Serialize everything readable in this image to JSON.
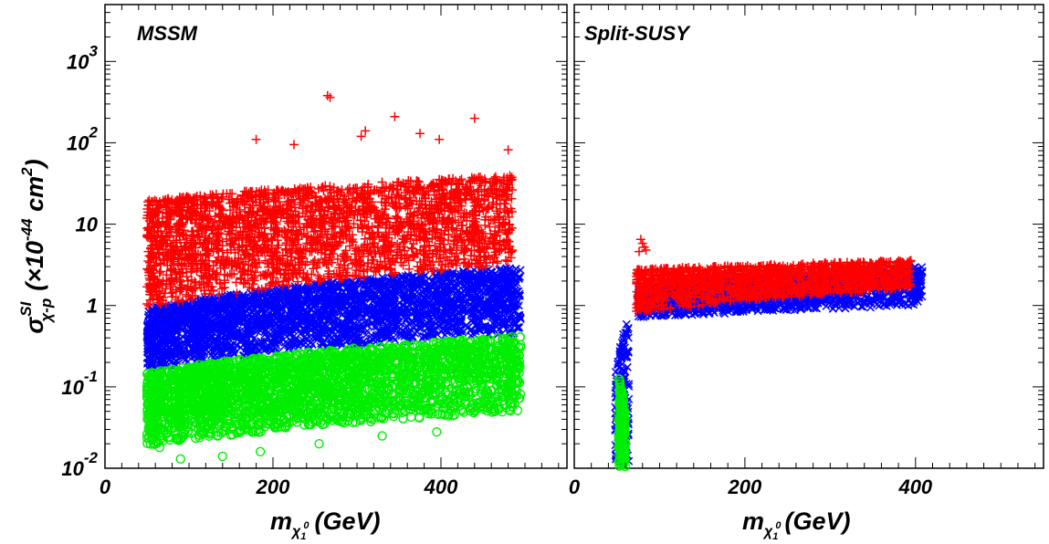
{
  "chart_data": [
    {
      "type": "scatter",
      "title": "MSSM",
      "xlabel": "m_χ1^0 (GeV)",
      "xlabel_parts": {
        "base": "m",
        "sub": "χ",
        "subsub": "1",
        "subsup": "0",
        "unit": "(GeV)"
      },
      "ylabel": "σ^SI_χ-p (×10^-44 cm^2)",
      "ylabel_parts": {
        "sigma": "σ",
        "sup": "SI",
        "sub": "χ-p",
        "pre": "(×10",
        "exp": "-44",
        "unit": " cm",
        "unit_exp": "2",
        "close": ")"
      },
      "xlim": [
        0,
        550
      ],
      "ylim": [
        0.01,
        5000
      ],
      "yscale": "log",
      "x_ticks": [
        {
          "v": 0,
          "label": "0"
        },
        {
          "v": 200,
          "label": "200"
        },
        {
          "v": 400,
          "label": "400"
        }
      ],
      "y_ticks": [
        {
          "v": 0.01,
          "base": "10",
          "exp": "-2"
        },
        {
          "v": 0.1,
          "base": "10",
          "exp": "-1"
        },
        {
          "v": 1,
          "base": "1",
          "exp": ""
        },
        {
          "v": 10,
          "base": "10",
          "exp": ""
        },
        {
          "v": 100,
          "base": "10",
          "exp": "2"
        },
        {
          "v": 1000,
          "base": "10",
          "exp": "3"
        }
      ],
      "grid": false,
      "series": [
        {
          "marker": "plus",
          "color": "#ff0000",
          "x_range": [
            50,
            485
          ],
          "y_low": [
            0.9,
            3.0
          ],
          "y_high": [
            20,
            40
          ],
          "n": 2600,
          "outliers": [
            [
              265,
              380
            ],
            [
              268,
              360
            ],
            [
              345,
              210
            ],
            [
              440,
              200
            ],
            [
              375,
              130
            ],
            [
              310,
              140
            ],
            [
              398,
              110
            ],
            [
              480,
              82
            ],
            [
              485,
              4.8
            ],
            [
              225,
              95
            ],
            [
              180,
              110
            ],
            [
              305,
              120
            ]
          ]
        },
        {
          "marker": "x",
          "color": "#0000ff",
          "x_range": [
            50,
            495
          ],
          "y_low": [
            0.16,
            0.45
          ],
          "y_high": [
            0.9,
            3.0
          ],
          "n": 3000
        },
        {
          "marker": "circle",
          "color": "#00ee00",
          "x_range": [
            50,
            495
          ],
          "y_low": [
            0.018,
            0.05
          ],
          "y_high": [
            0.15,
            0.42
          ],
          "n": 3000,
          "outliers": [
            [
              60,
              0.02
            ],
            [
              65,
              0.018
            ],
            [
              90,
              0.013
            ],
            [
              140,
              0.014
            ],
            [
              185,
              0.016
            ],
            [
              255,
              0.02
            ],
            [
              330,
              0.025
            ],
            [
              395,
              0.028
            ]
          ]
        }
      ]
    },
    {
      "type": "scatter",
      "title": "Split-SUSY",
      "xlabel": "m_χ1^0 (GeV)",
      "xlabel_parts": {
        "base": "m",
        "sub": "χ",
        "subsub": "1",
        "subsup": "0",
        "unit": "(GeV)"
      },
      "xlim": [
        0,
        550
      ],
      "ylim": [
        0.01,
        5000
      ],
      "yscale": "log",
      "x_ticks": [
        {
          "v": 0,
          "label": "0"
        },
        {
          "v": 200,
          "label": "200"
        },
        {
          "v": 400,
          "label": "400"
        }
      ],
      "grid": false,
      "series": [
        {
          "marker": "plus",
          "color": "#ff0000",
          "x_range": [
            73,
            395
          ],
          "y_low": [
            0.8,
            1.6
          ],
          "y_high": [
            2.8,
            3.6
          ],
          "n": 1500,
          "outliers": [
            [
              78,
              6.5
            ],
            [
              80,
              5.8
            ],
            [
              82,
              5.2
            ],
            [
              76,
              4.6
            ],
            [
              84,
              4.8
            ]
          ]
        },
        {
          "marker": "x",
          "color": "#0000ff",
          "x_range": [
            75,
            408
          ],
          "y_low": [
            0.7,
            1.0
          ],
          "y_high": [
            1.6,
            3.0
          ],
          "n": 1700,
          "stem": {
            "x_range": [
              48,
              64
            ],
            "y_low": 0.012,
            "y_high": [
              0.15,
              0.7
            ]
          }
        },
        {
          "marker": "circle",
          "color": "#00ee00",
          "stem": {
            "x_range": [
              52,
              60
            ],
            "y_low": 0.01,
            "y_high": [
              0.15,
              0.04
            ]
          }
        }
      ]
    }
  ]
}
